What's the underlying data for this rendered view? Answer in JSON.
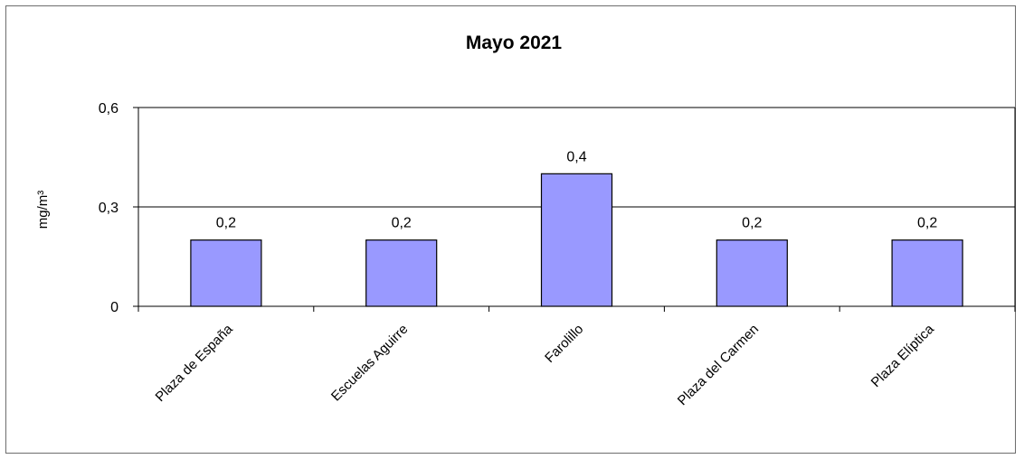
{
  "chart_data": {
    "type": "bar",
    "title": "Mayo 2021",
    "ylabel": "mg/m³",
    "xlabel": "",
    "categories": [
      "Plaza de España",
      "Escuelas Aguirre",
      "Farolillo",
      "Plaza del Carmen",
      "Plaza Elíptica"
    ],
    "values": [
      0.2,
      0.2,
      0.4,
      0.2,
      0.2
    ],
    "data_labels": [
      "0,2",
      "0,2",
      "0,4",
      "0,2",
      "0,2"
    ],
    "ylim": [
      0,
      0.6
    ],
    "yticks": [
      0,
      0.3,
      0.6
    ],
    "ytick_labels": [
      "0",
      "0,3",
      "0,6"
    ],
    "grid": true,
    "legend": "none",
    "colors": {
      "bar_fill": "#9999ff",
      "bar_stroke": "#000000",
      "grid": "#000000"
    }
  }
}
